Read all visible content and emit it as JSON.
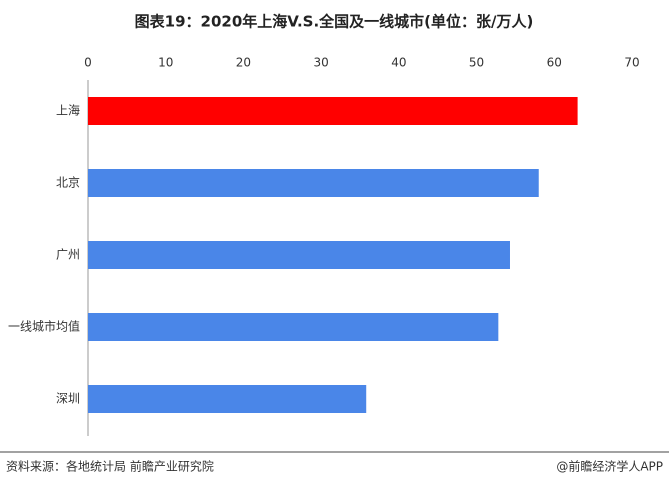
{
  "chart_data": {
    "type": "hbar",
    "title": "图表19：2020年上海V.S.全国及一线城市(单位：张/万人)",
    "categories": [
      "上海",
      "北京",
      "广州",
      "一线城市均值",
      "深圳"
    ],
    "values": [
      63,
      58,
      54.3,
      52.8,
      35.8
    ],
    "colors": [
      "#ff0000",
      "#4a86e8",
      "#4a86e8",
      "#4a86e8",
      "#4a86e8"
    ],
    "xlim": [
      0,
      70
    ],
    "xticks": [
      0,
      10,
      20,
      30,
      40,
      50,
      60,
      70
    ],
    "grid": false
  },
  "footer": {
    "source": "资料来源：各地统计局 前瞻产业研究院",
    "credit": "@前瞻经济学人APP"
  }
}
